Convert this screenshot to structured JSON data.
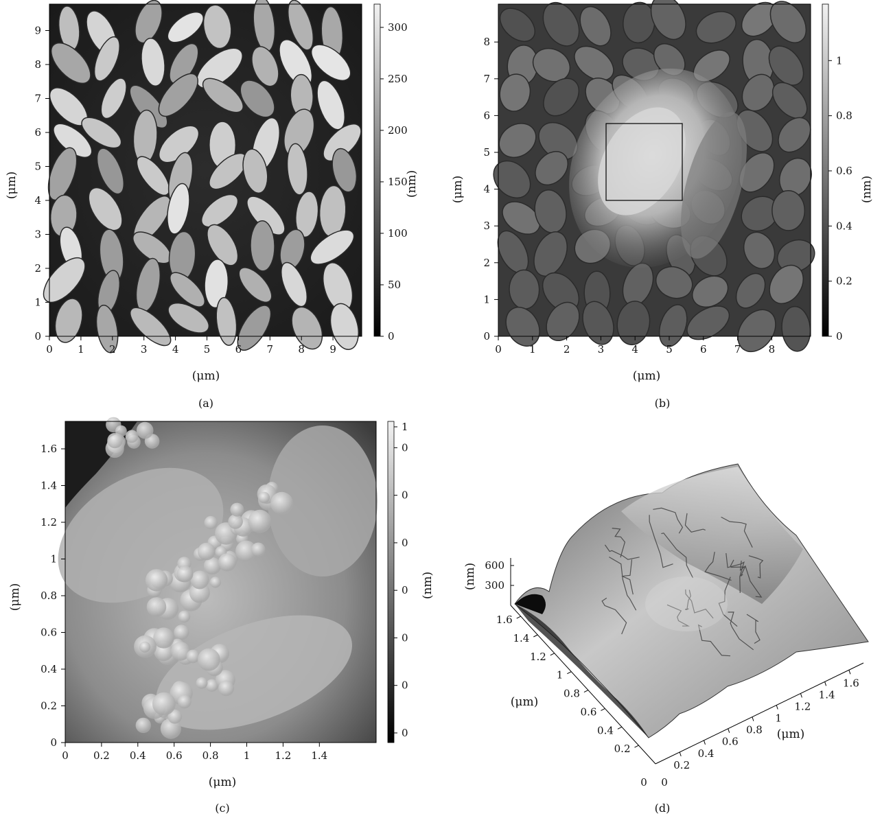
{
  "panels": {
    "a": {
      "caption": "(a)",
      "x_ticks": [
        "0",
        "1",
        "2",
        "3",
        "4",
        "5",
        "6",
        "7",
        "8",
        "9"
      ],
      "y_ticks": [
        "0",
        "1",
        "2",
        "3",
        "4",
        "5",
        "6",
        "7",
        "8",
        "9"
      ],
      "x_label": "(μm)",
      "y_label": "(μm)",
      "cbar_ticks": [
        "0",
        "50",
        "100",
        "150",
        "200",
        "250",
        "300"
      ],
      "cbar_label": "(nm)"
    },
    "b": {
      "caption": "(b)",
      "x_ticks": [
        "0",
        "1",
        "2",
        "3",
        "4",
        "5",
        "6",
        "7",
        "8"
      ],
      "y_ticks": [
        "0",
        "1",
        "2",
        "3",
        "4",
        "5",
        "6",
        "7",
        "8"
      ],
      "x_label": "(μm)",
      "y_label": "(μm)",
      "cbar_ticks": [
        "0",
        "0.2",
        "0.4",
        "0.6",
        "0.8",
        "1"
      ],
      "cbar_label": "(nm)"
    },
    "c": {
      "caption": "(c)",
      "x_ticks": [
        "0",
        "0.2",
        "0.4",
        "0.6",
        "0.8",
        "1",
        "1.2",
        "1.4"
      ],
      "y_ticks": [
        "0",
        "0.2",
        "0.4",
        "0.6",
        "0.8",
        "1",
        "1.2",
        "1.4",
        "1.6"
      ],
      "x_label": "(μm)",
      "y_label": "(μm)",
      "cbar_ticks": [
        "0",
        "0",
        "0",
        "0",
        "0",
        "0",
        "0",
        "1"
      ],
      "cbar_label": "(nm)"
    },
    "d": {
      "caption": "(d)",
      "z_ticks": [
        "600",
        "300"
      ],
      "z_label": "(nm)",
      "left_ticks": [
        "0",
        "0.2",
        "0.4",
        "0.6",
        "0.8",
        "1",
        "1.2",
        "1.4",
        "1.6"
      ],
      "right_ticks": [
        "0",
        "0.2",
        "0.4",
        "0.6",
        "0.8",
        "1",
        "1.2",
        "1.4",
        "1.6"
      ],
      "left_label": "(μm)",
      "right_label": "(μm)"
    }
  }
}
